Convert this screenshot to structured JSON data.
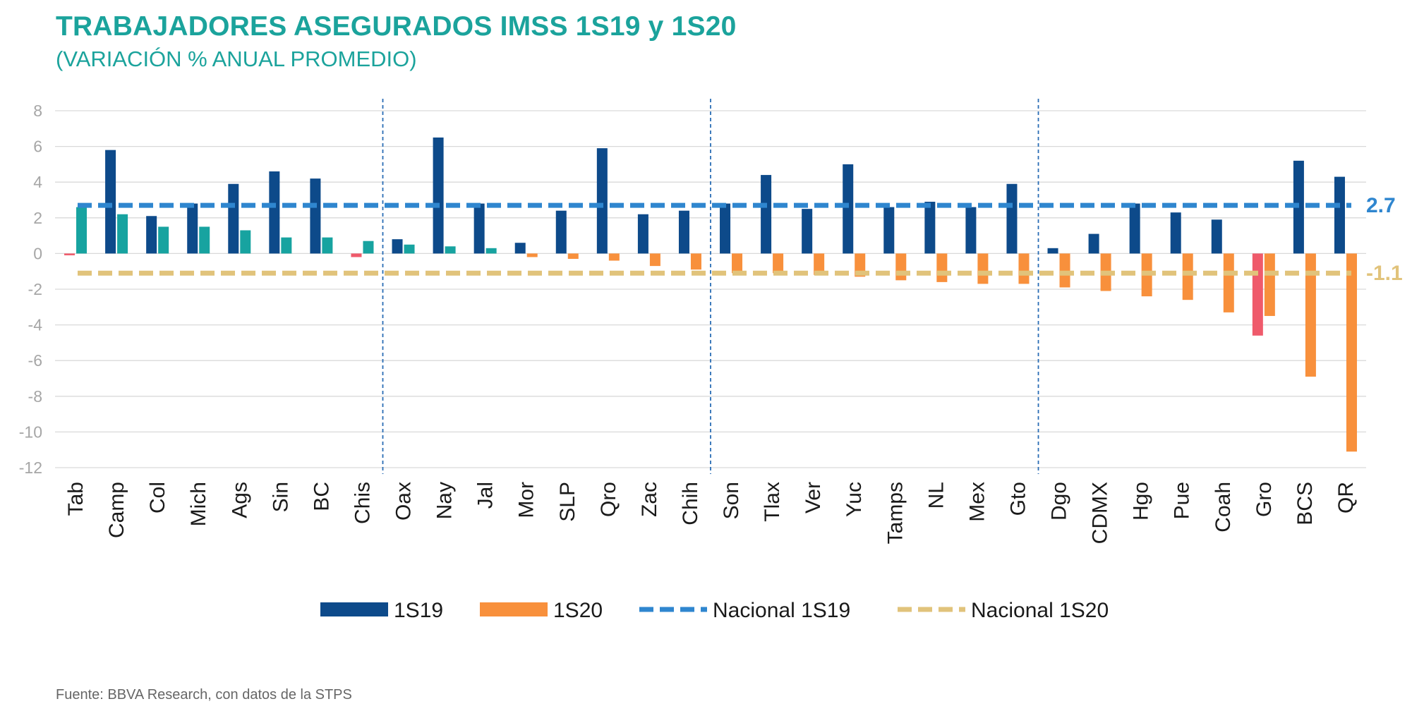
{
  "header": {
    "title": "TRABAJADORES ASEGURADOS IMSS 1S19 y 1S20",
    "subtitle": "(VARIACIÓN % ANUAL PROMEDIO)"
  },
  "footer": {
    "source": "Fuente: BBVA Research, con datos de la STPS"
  },
  "colors": {
    "s1_main": "#0d4a8a",
    "s1_alt": "#17a3a0",
    "s2_main": "#f8903c",
    "s2_alt": "#ef5a6b",
    "nacional_1s19": "#2f86cf",
    "nacional_1s20": "#e1c37b",
    "grid": "#d9d9d9",
    "divider": "#2a6db5"
  },
  "chart_data": {
    "type": "bar",
    "categories": [
      "Tab",
      "Camp",
      "Col",
      "Mich",
      "Ags",
      "Sin",
      "BC",
      "Chis",
      "Oax",
      "Nay",
      "Jal",
      "Mor",
      "SLP",
      "Qro",
      "Zac",
      "Chih",
      "Son",
      "Tlax",
      "Ver",
      "Yuc",
      "Tamps",
      "NL",
      "Mex",
      "Gto",
      "Dgo",
      "CDMX",
      "Hgo",
      "Pue",
      "Coah",
      "Gro",
      "BCS",
      "QR"
    ],
    "series": [
      {
        "name": "1S19",
        "values": [
          -0.1,
          5.8,
          2.1,
          2.8,
          3.9,
          4.6,
          4.2,
          -0.2,
          0.8,
          6.5,
          2.8,
          0.6,
          2.4,
          5.9,
          2.2,
          2.4,
          2.8,
          4.4,
          2.5,
          5.0,
          2.6,
          2.9,
          2.6,
          3.9,
          0.3,
          1.1,
          2.8,
          2.3,
          1.9,
          -4.6,
          5.2,
          4.3
        ]
      },
      {
        "name": "1S20",
        "values": [
          2.6,
          2.2,
          1.5,
          1.5,
          1.3,
          0.9,
          0.9,
          0.7,
          0.5,
          0.4,
          0.3,
          -0.2,
          -0.3,
          -0.4,
          -0.7,
          -0.9,
          -1.1,
          -1.1,
          -1.2,
          -1.3,
          -1.5,
          -1.6,
          -1.7,
          -1.7,
          -1.9,
          -2.1,
          -2.4,
          -2.6,
          -3.3,
          -3.5,
          -6.9,
          -11.1
        ]
      }
    ],
    "reference_lines": [
      {
        "name": "Nacional 1S19",
        "value": 2.7,
        "label": "2.7"
      },
      {
        "name": "Nacional 1S20",
        "value": -1.1,
        "label": "-1.1"
      }
    ],
    "group_dividers_after": [
      "Chis",
      "Chih",
      "Gto"
    ],
    "yticks": [
      8,
      6,
      4,
      2,
      0,
      -2,
      -4,
      -6,
      -8,
      -10,
      -12
    ],
    "ylim": [
      -12,
      8
    ],
    "grid": true,
    "legend": {
      "position": "bottom-center",
      "items": [
        {
          "label": "1S19",
          "kind": "bar"
        },
        {
          "label": "1S20",
          "kind": "bar"
        },
        {
          "label": "Nacional 1S19",
          "kind": "dashed"
        },
        {
          "label": "Nacional 1S20",
          "kind": "dashed"
        }
      ]
    }
  }
}
